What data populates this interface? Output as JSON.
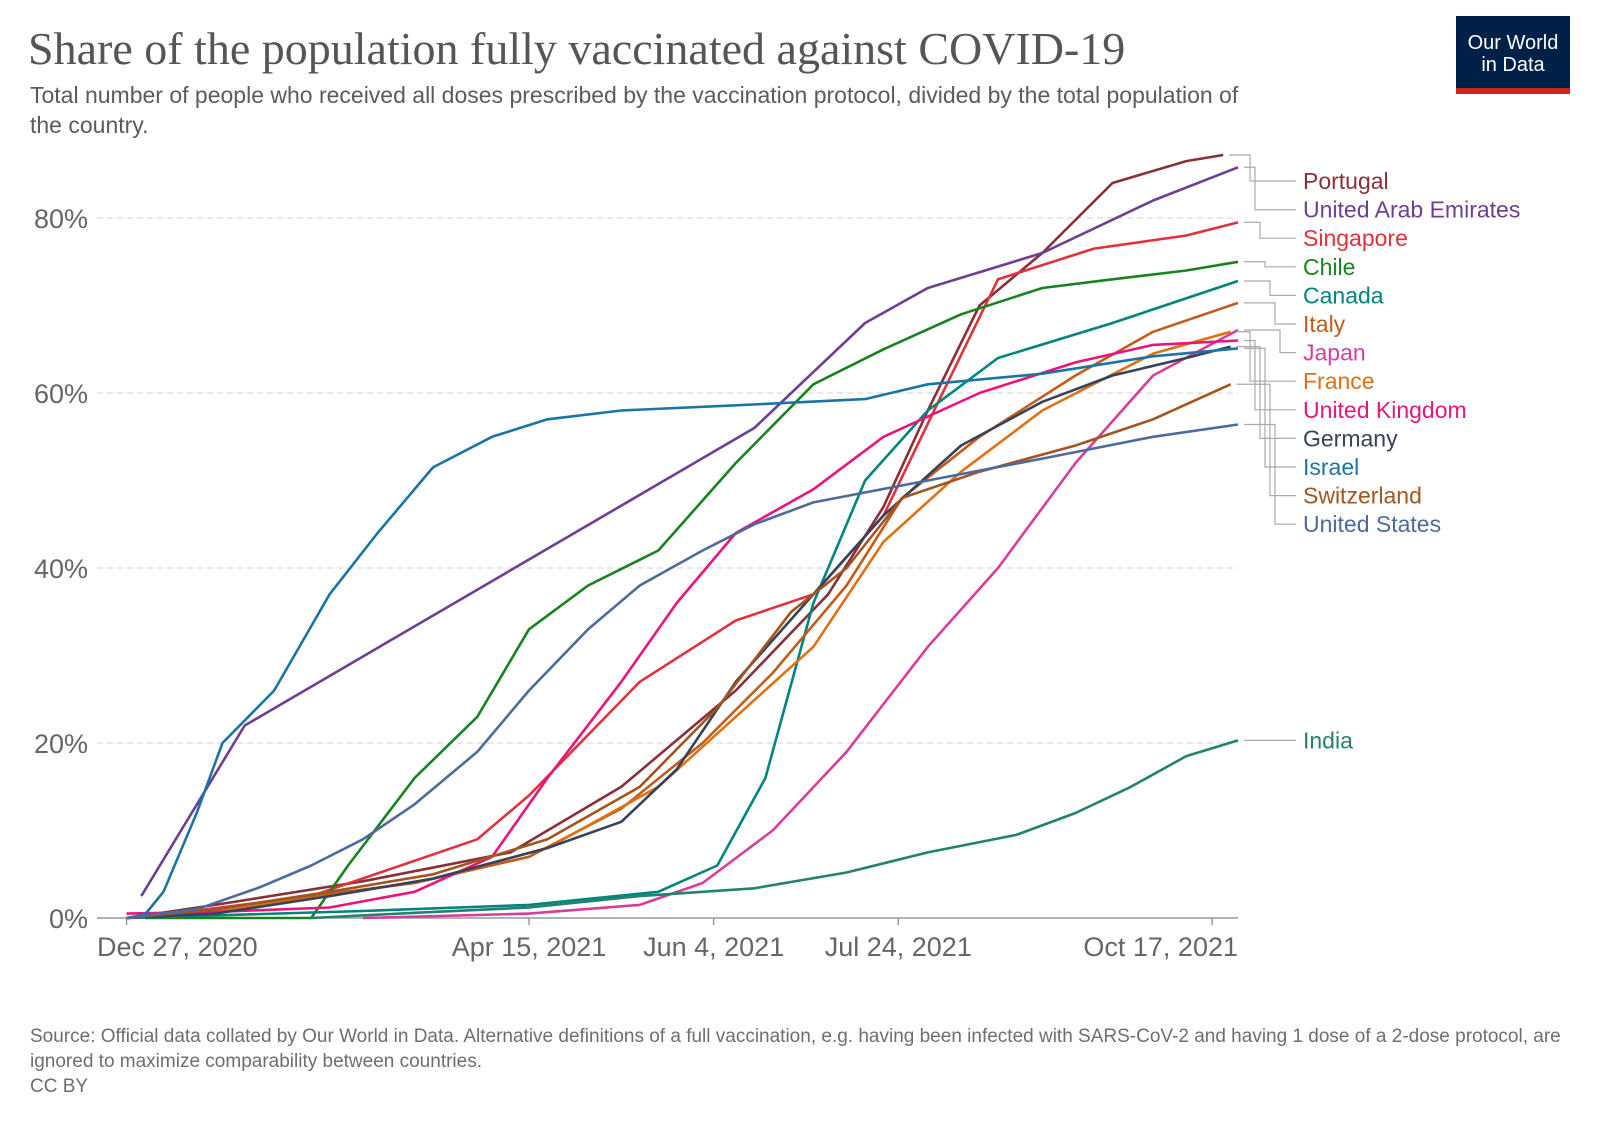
{
  "header": {
    "title": "Share of the population fully vaccinated against COVID-19",
    "subtitle": "Total number of people who received all doses prescribed by the vaccination protocol, divided by the total population of the country.",
    "logo_line1": "Our World",
    "logo_line2": "in Data",
    "logo_bg": "#002147",
    "logo_accent": "#ce261e"
  },
  "footer": {
    "source": "Source: Official data collated by Our World in Data. Alternative definitions of a full vaccination, e.g. having been infected with SARS-CoV-2 and having 1 dose of a 2-dose protocol, are ignored to maximize comparability between countries.",
    "license": "CC BY"
  },
  "chart_data": {
    "type": "line",
    "title": "Share of the population fully vaccinated against COVID-19",
    "x_axis": {
      "type": "date",
      "range": [
        "2020-12-19",
        "2021-10-24"
      ],
      "tick_labels": [
        "Dec 27, 2020",
        "Apr 15, 2021",
        "Jun 4, 2021",
        "Jul 24, 2021",
        "Oct 17, 2021"
      ],
      "tick_dates": [
        "2020-12-27",
        "2021-04-15",
        "2021-06-04",
        "2021-07-24",
        "2021-10-17"
      ]
    },
    "y_axis": {
      "unit": "%",
      "range": [
        0,
        88
      ],
      "tick_labels": [
        "0%",
        "20%",
        "40%",
        "60%",
        "80%"
      ],
      "tick_values": [
        0,
        20,
        40,
        60,
        80
      ]
    },
    "grid": "horizontal dashed",
    "legend": "right, line end labels",
    "series": [
      {
        "name": "Portugal",
        "color": "#883039",
        "points": [
          [
            "2020-12-27",
            0
          ],
          [
            "2021-01-20",
            1.5
          ],
          [
            "2021-03-01",
            4.2
          ],
          [
            "2021-04-10",
            7.5
          ],
          [
            "2021-05-10",
            15
          ],
          [
            "2021-06-10",
            26
          ],
          [
            "2021-07-05",
            37
          ],
          [
            "2021-07-20",
            47
          ],
          [
            "2021-08-01",
            58
          ],
          [
            "2021-08-15",
            70
          ],
          [
            "2021-09-01",
            76
          ],
          [
            "2021-09-20",
            84
          ],
          [
            "2021-10-10",
            86.5
          ],
          [
            "2021-10-20",
            87.2
          ]
        ]
      },
      {
        "name": "United Arab Emirates",
        "color": "#6d3e91",
        "points": [
          [
            "2020-12-31",
            2.5
          ],
          [
            "2021-01-28",
            22
          ],
          [
            "2021-06-15",
            56
          ],
          [
            "2021-07-15",
            68
          ],
          [
            "2021-08-01",
            72
          ],
          [
            "2021-09-01",
            76
          ],
          [
            "2021-10-01",
            82
          ],
          [
            "2021-10-24",
            85.8
          ]
        ]
      },
      {
        "name": "Singapore",
        "color": "#e0323c",
        "points": [
          [
            "2021-01-01",
            0.1
          ],
          [
            "2021-02-15",
            2.5
          ],
          [
            "2021-04-01",
            9
          ],
          [
            "2021-04-15",
            14
          ],
          [
            "2021-05-15",
            27
          ],
          [
            "2021-06-10",
            34
          ],
          [
            "2021-07-01",
            37
          ],
          [
            "2021-07-20",
            46
          ],
          [
            "2021-08-05",
            60
          ],
          [
            "2021-08-20",
            73
          ],
          [
            "2021-09-15",
            76.5
          ],
          [
            "2021-10-10",
            78
          ],
          [
            "2021-10-24",
            79.5
          ]
        ]
      },
      {
        "name": "Chile",
        "color": "#18831e",
        "points": [
          [
            "2021-01-01",
            0
          ],
          [
            "2021-02-15",
            0
          ],
          [
            "2021-02-25",
            6
          ],
          [
            "2021-03-15",
            16
          ],
          [
            "2021-04-01",
            23
          ],
          [
            "2021-04-15",
            33
          ],
          [
            "2021-05-01",
            38
          ],
          [
            "2021-05-20",
            42
          ],
          [
            "2021-06-10",
            52
          ],
          [
            "2021-07-01",
            61
          ],
          [
            "2021-07-20",
            65
          ],
          [
            "2021-08-10",
            69
          ],
          [
            "2021-09-01",
            72
          ],
          [
            "2021-09-20",
            73
          ],
          [
            "2021-10-10",
            74
          ],
          [
            "2021-10-24",
            75
          ]
        ]
      },
      {
        "name": "Canada",
        "color": "#00847e",
        "points": [
          [
            "2020-12-27",
            0
          ],
          [
            "2021-01-20",
            0.3
          ],
          [
            "2021-03-01",
            0.8
          ],
          [
            "2021-04-15",
            1.5
          ],
          [
            "2021-05-20",
            3
          ],
          [
            "2021-06-05",
            6
          ],
          [
            "2021-06-18",
            16
          ],
          [
            "2021-07-01",
            36
          ],
          [
            "2021-07-15",
            50
          ],
          [
            "2021-08-01",
            58
          ],
          [
            "2021-08-20",
            64
          ],
          [
            "2021-09-20",
            68
          ],
          [
            "2021-10-24",
            72.8
          ]
        ]
      },
      {
        "name": "Italy",
        "color": "#c15c1c",
        "points": [
          [
            "2020-12-27",
            0
          ],
          [
            "2021-01-15",
            0.5
          ],
          [
            "2021-02-15",
            2.5
          ],
          [
            "2021-03-15",
            4
          ],
          [
            "2021-04-15",
            7
          ],
          [
            "2021-05-10",
            12.5
          ],
          [
            "2021-06-01",
            20
          ],
          [
            "2021-06-20",
            28
          ],
          [
            "2021-07-10",
            38
          ],
          [
            "2021-07-25",
            48
          ],
          [
            "2021-08-15",
            55
          ],
          [
            "2021-09-10",
            62
          ],
          [
            "2021-10-01",
            67
          ],
          [
            "2021-10-24",
            70.3
          ]
        ]
      },
      {
        "name": "Japan",
        "color": "#d73e9b",
        "points": [
          [
            "2021-03-01",
            0
          ],
          [
            "2021-04-15",
            0.5
          ],
          [
            "2021-05-15",
            1.5
          ],
          [
            "2021-06-01",
            4
          ],
          [
            "2021-06-20",
            10
          ],
          [
            "2021-07-10",
            19
          ],
          [
            "2021-08-01",
            31
          ],
          [
            "2021-08-20",
            40
          ],
          [
            "2021-09-10",
            52
          ],
          [
            "2021-10-01",
            62
          ],
          [
            "2021-10-24",
            67.2
          ]
        ]
      },
      {
        "name": "France",
        "color": "#dc7213",
        "points": [
          [
            "2020-12-27",
            0
          ],
          [
            "2021-01-20",
            0.8
          ],
          [
            "2021-02-20",
            2.5
          ],
          [
            "2021-03-20",
            4.5
          ],
          [
            "2021-04-20",
            8
          ],
          [
            "2021-05-20",
            15
          ],
          [
            "2021-06-10",
            23
          ],
          [
            "2021-07-01",
            31
          ],
          [
            "2021-07-20",
            43
          ],
          [
            "2021-08-10",
            51
          ],
          [
            "2021-09-01",
            58
          ],
          [
            "2021-10-01",
            64.5
          ],
          [
            "2021-10-22",
            67
          ]
        ]
      },
      {
        "name": "United Kingdom",
        "color": "#e8157a",
        "points": [
          [
            "2020-12-27",
            0.5
          ],
          [
            "2021-01-20",
            0.7
          ],
          [
            "2021-02-20",
            1.2
          ],
          [
            "2021-03-15",
            3
          ],
          [
            "2021-04-05",
            7
          ],
          [
            "2021-04-20",
            16
          ],
          [
            "2021-05-10",
            27
          ],
          [
            "2021-05-25",
            36
          ],
          [
            "2021-06-10",
            44
          ],
          [
            "2021-07-01",
            49
          ],
          [
            "2021-07-20",
            55
          ],
          [
            "2021-08-15",
            60
          ],
          [
            "2021-09-10",
            63.5
          ],
          [
            "2021-10-01",
            65.5
          ],
          [
            "2021-10-24",
            66
          ]
        ]
      },
      {
        "name": "Germany",
        "color": "#37425b",
        "points": [
          [
            "2020-12-27",
            0
          ],
          [
            "2021-01-20",
            0.5
          ],
          [
            "2021-02-20",
            2.5
          ],
          [
            "2021-03-20",
            4.5
          ],
          [
            "2021-04-20",
            8
          ],
          [
            "2021-05-10",
            11
          ],
          [
            "2021-05-25",
            17
          ],
          [
            "2021-06-10",
            27
          ],
          [
            "2021-07-01",
            37
          ],
          [
            "2021-07-20",
            46
          ],
          [
            "2021-08-10",
            54
          ],
          [
            "2021-09-01",
            59
          ],
          [
            "2021-09-20",
            62
          ],
          [
            "2021-10-10",
            64
          ],
          [
            "2021-10-22",
            65.3
          ]
        ]
      },
      {
        "name": "Israel",
        "color": "#1b75a4",
        "points": [
          [
            "2020-12-27",
            0
          ],
          [
            "2021-01-01",
            0.4
          ],
          [
            "2021-01-06",
            3
          ],
          [
            "2021-01-15",
            12
          ],
          [
            "2021-01-22",
            20
          ],
          [
            "2021-02-05",
            26
          ],
          [
            "2021-02-20",
            37
          ],
          [
            "2021-03-05",
            44
          ],
          [
            "2021-03-20",
            51.5
          ],
          [
            "2021-04-05",
            55
          ],
          [
            "2021-04-20",
            57
          ],
          [
            "2021-05-10",
            58
          ],
          [
            "2021-06-10",
            58.6
          ],
          [
            "2021-07-15",
            59.3
          ],
          [
            "2021-08-01",
            61
          ],
          [
            "2021-09-01",
            62.2
          ],
          [
            "2021-10-01",
            64.2
          ],
          [
            "2021-10-24",
            65.1
          ]
        ]
      },
      {
        "name": "Switzerland",
        "color": "#a2551d",
        "points": [
          [
            "2020-12-27",
            0
          ],
          [
            "2021-01-20",
            1
          ],
          [
            "2021-02-20",
            3
          ],
          [
            "2021-03-20",
            5
          ],
          [
            "2021-04-20",
            9
          ],
          [
            "2021-05-15",
            15
          ],
          [
            "2021-06-05",
            24
          ],
          [
            "2021-06-25",
            35
          ],
          [
            "2021-07-10",
            40
          ],
          [
            "2021-07-25",
            48
          ],
          [
            "2021-08-15",
            51
          ],
          [
            "2021-09-10",
            54
          ],
          [
            "2021-10-01",
            57
          ],
          [
            "2021-10-22",
            61
          ]
        ]
      },
      {
        "name": "United States",
        "color": "#4c6a9c",
        "points": [
          [
            "2020-12-27",
            0
          ],
          [
            "2021-01-15",
            1
          ],
          [
            "2021-02-01",
            3.5
          ],
          [
            "2021-02-15",
            6
          ],
          [
            "2021-03-01",
            9
          ],
          [
            "2021-03-15",
            13
          ],
          [
            "2021-04-01",
            19
          ],
          [
            "2021-04-15",
            26
          ],
          [
            "2021-05-01",
            33
          ],
          [
            "2021-05-15",
            38
          ],
          [
            "2021-06-01",
            42
          ],
          [
            "2021-06-15",
            45
          ],
          [
            "2021-07-01",
            47.5
          ],
          [
            "2021-08-01",
            50
          ],
          [
            "2021-09-01",
            52.5
          ],
          [
            "2021-10-01",
            55
          ],
          [
            "2021-10-24",
            56.4
          ]
        ]
      },
      {
        "name": "India",
        "color": "#22826c",
        "points": [
          [
            "2021-02-15",
            0
          ],
          [
            "2021-03-15",
            0.6
          ],
          [
            "2021-04-15",
            1.2
          ],
          [
            "2021-05-15",
            2.5
          ],
          [
            "2021-06-15",
            3.4
          ],
          [
            "2021-07-10",
            5.2
          ],
          [
            "2021-08-01",
            7.5
          ],
          [
            "2021-08-25",
            9.5
          ],
          [
            "2021-09-10",
            12
          ],
          [
            "2021-09-25",
            15
          ],
          [
            "2021-10-10",
            18.5
          ],
          [
            "2021-10-24",
            20.3
          ]
        ]
      }
    ]
  }
}
